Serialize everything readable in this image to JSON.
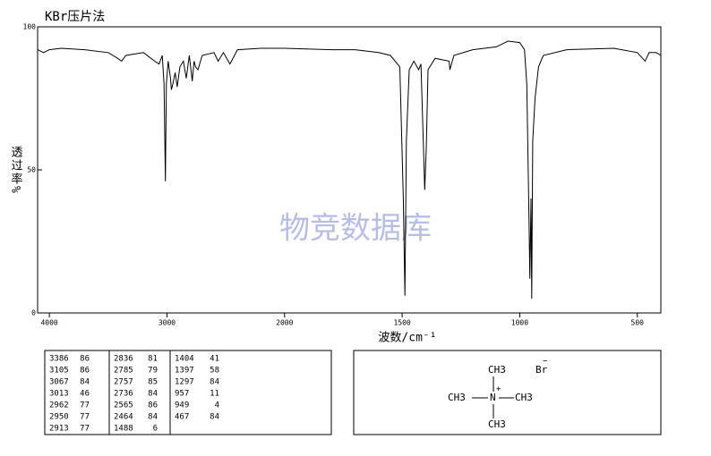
{
  "chart_data": {
    "type": "line",
    "title": "KBr压片法",
    "ylabel": "透过率%",
    "xlabel": "波数/cm⁻¹",
    "watermark": "物竞数据库",
    "xlim": [
      4100,
      400
    ],
    "xscale_break": 2000,
    "xticks": [
      4000,
      3000,
      2000,
      1500,
      1000,
      500
    ],
    "ylim": [
      0,
      100
    ],
    "yticks": [
      0,
      50,
      100
    ],
    "series": [
      {
        "color": "#000000",
        "x": [
          4100,
          4050,
          4000,
          3900,
          3700,
          3500,
          3420,
          3386,
          3350,
          3200,
          3105,
          3067,
          3040,
          3025,
          3013,
          3005,
          2990,
          2970,
          2962,
          2950,
          2930,
          2913,
          2890,
          2860,
          2836,
          2810,
          2785,
          2770,
          2757,
          2736,
          2700,
          2600,
          2565,
          2520,
          2464,
          2400,
          2200,
          2000,
          1800,
          1700,
          1600,
          1550,
          1510,
          1495,
          1488,
          1482,
          1470,
          1450,
          1430,
          1420,
          1410,
          1404,
          1397,
          1390,
          1360,
          1300,
          1297,
          1280,
          1200,
          1100,
          1050,
          1000,
          980,
          970,
          960,
          957,
          952,
          949,
          945,
          935,
          920,
          900,
          800,
          600,
          500,
          467,
          450,
          420,
          400
        ],
        "values": [
          92,
          91,
          92,
          92.5,
          92,
          91,
          89,
          88,
          90,
          91,
          88,
          87,
          90,
          80,
          46,
          80,
          88,
          82,
          78,
          80,
          84,
          79,
          86,
          88,
          82,
          90,
          81,
          88,
          86,
          85,
          90,
          91,
          88,
          91,
          87,
          92,
          92.5,
          92.5,
          92,
          92,
          91,
          90,
          86,
          40,
          6,
          60,
          85,
          88,
          85,
          87,
          60,
          43,
          58,
          85,
          89,
          88,
          85,
          90,
          92,
          93,
          95,
          94.5,
          92,
          80,
          30,
          12,
          40,
          5,
          60,
          75,
          86,
          90,
          92,
          92.5,
          91,
          88,
          91,
          91,
          90
        ]
      }
    ]
  },
  "peak_table": [
    [
      [
        "3386",
        "86"
      ],
      [
        "3105",
        "86"
      ],
      [
        "3067",
        "84"
      ],
      [
        "3013",
        "46"
      ],
      [
        "2962",
        "77"
      ],
      [
        "2950",
        "77"
      ],
      [
        "2913",
        "77"
      ]
    ],
    [
      [
        "2836",
        "81"
      ],
      [
        "2785",
        "79"
      ],
      [
        "2757",
        "85"
      ],
      [
        "2736",
        "84"
      ],
      [
        "2565",
        "86"
      ],
      [
        "2464",
        "84"
      ],
      [
        "1488",
        "6"
      ]
    ],
    [
      [
        "1404",
        "41"
      ],
      [
        "1397",
        "58"
      ],
      [
        "1297",
        "84"
      ],
      [
        "957",
        "11"
      ],
      [
        "949",
        "4"
      ],
      [
        "467",
        "84"
      ]
    ]
  ],
  "structure": {
    "methyl_top": "CH3",
    "methyl_left": "CH3",
    "methyl_right": "CH3",
    "methyl_bottom": "CH3",
    "nitrogen": "N",
    "charge_plus": "+",
    "anion": "Br",
    "charge_minus": "−"
  }
}
